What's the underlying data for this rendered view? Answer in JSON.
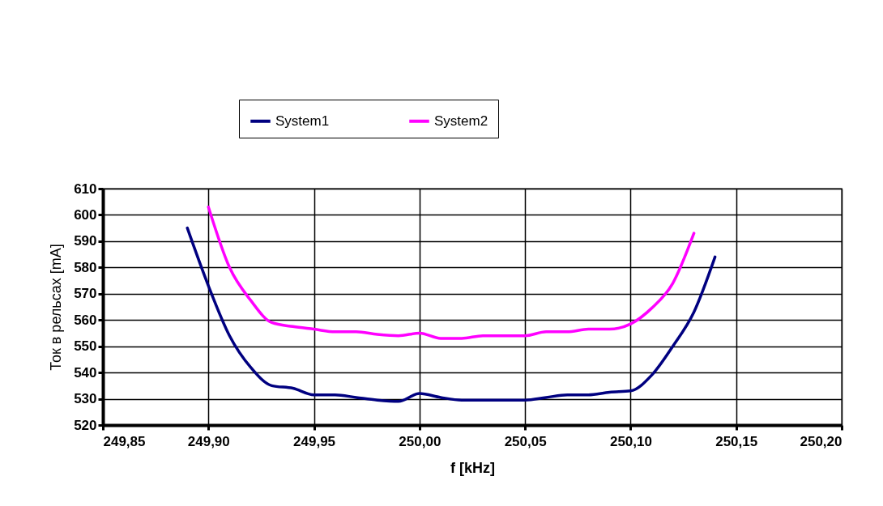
{
  "chart_data": {
    "type": "line",
    "xlabel": "f [kHz]",
    "ylabel": "Ток в рельсах [mA]",
    "xlim": [
      249.85,
      250.2
    ],
    "xticks": [
      {
        "value": 249.85,
        "label": "249,85"
      },
      {
        "value": 249.9,
        "label": "249,90"
      },
      {
        "value": 249.95,
        "label": "249,95"
      },
      {
        "value": 250,
        "label": "250,00"
      },
      {
        "value": 250.05,
        "label": "250,05"
      },
      {
        "value": 250.1,
        "label": "250,10"
      },
      {
        "value": 250.15,
        "label": "250,15"
      },
      {
        "value": 250.2,
        "label": "250,20"
      }
    ],
    "ylim": [
      520,
      610
    ],
    "yticks": [
      520,
      530,
      540,
      550,
      560,
      570,
      580,
      590,
      600,
      610
    ],
    "grid": true,
    "legend": "top",
    "marker": "none",
    "line_style": "solid",
    "series": [
      {
        "name": "System1",
        "color": "#000080",
        "x": [
          249.89,
          249.9,
          249.91,
          249.92,
          249.93,
          249.94,
          249.95,
          249.96,
          249.97,
          249.98,
          249.99,
          250,
          250.01,
          250.02,
          250.03,
          250.04,
          250.05,
          250.06,
          250.07,
          250.08,
          250.09,
          250.1,
          250.11,
          250.12,
          250.13,
          250.14
        ],
        "values": [
          595,
          573,
          554,
          542,
          535,
          534,
          531.5,
          531.5,
          530.5,
          529.5,
          529,
          532,
          530.5,
          529.5,
          529.5,
          529.5,
          529.5,
          530.5,
          531.5,
          531.5,
          532.5,
          533,
          539,
          550,
          563,
          584
        ]
      },
      {
        "name": "System2",
        "color": "#ff00ff",
        "x": [
          249.9,
          249.91,
          249.92,
          249.93,
          249.94,
          249.95,
          249.96,
          249.97,
          249.98,
          249.99,
          250,
          250.01,
          250.02,
          250.03,
          250.04,
          250.05,
          250.06,
          250.07,
          250.08,
          250.09,
          250.1,
          250.11,
          250.12,
          250.13
        ],
        "values": [
          603,
          580,
          567.5,
          559,
          557.5,
          556.5,
          555.5,
          555.5,
          554.5,
          554,
          555,
          553,
          553,
          554,
          554,
          554,
          555.5,
          555.5,
          556.5,
          556.5,
          558.5,
          564.5,
          574,
          593
        ]
      }
    ]
  }
}
